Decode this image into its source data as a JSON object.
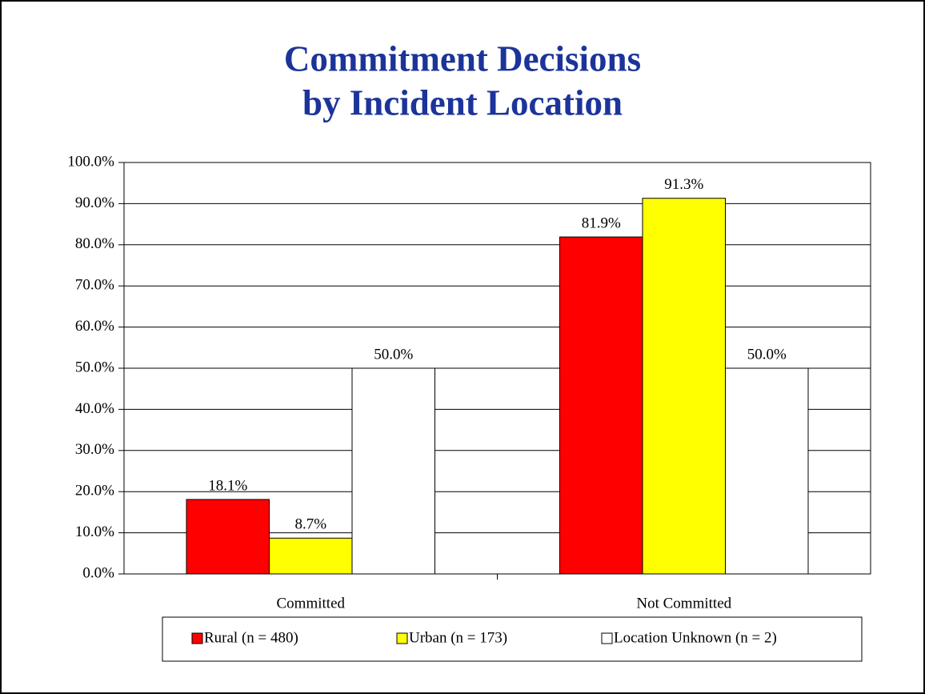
{
  "chart_data": {
    "type": "bar",
    "title": [
      "Commitment Decisions",
      "by Incident Location"
    ],
    "categories": [
      "Committed",
      "Not Committed"
    ],
    "series": [
      {
        "name": "Rural (n = 480)",
        "color": "#ff0000",
        "values": [
          18.1,
          81.9
        ],
        "value_labels": [
          "18.1%",
          "81.9%"
        ]
      },
      {
        "name": "Urban (n = 173)",
        "color": "#ffff00",
        "values": [
          8.7,
          91.3
        ],
        "value_labels": [
          "8.7%",
          "91.3%"
        ]
      },
      {
        "name": "Location Unknown (n = 2)",
        "color": "#ffffff",
        "values": [
          50.0,
          50.0
        ],
        "value_labels": [
          "50.0%",
          "50.0%"
        ]
      }
    ],
    "ylim": [
      0,
      100
    ],
    "yticks": [
      {
        "value": 0,
        "label": "0.0%"
      },
      {
        "value": 10,
        "label": "10.0%"
      },
      {
        "value": 20,
        "label": "20.0%"
      },
      {
        "value": 30,
        "label": "30.0%"
      },
      {
        "value": 40,
        "label": "40.0%"
      },
      {
        "value": 50,
        "label": "50.0%"
      },
      {
        "value": 60,
        "label": "60.0%"
      },
      {
        "value": 70,
        "label": "70.0%"
      },
      {
        "value": 80,
        "label": "80.0%"
      },
      {
        "value": 90,
        "label": "90.0%"
      },
      {
        "value": 100,
        "label": "100.0%"
      }
    ],
    "grid": true,
    "legend": "bottom"
  }
}
